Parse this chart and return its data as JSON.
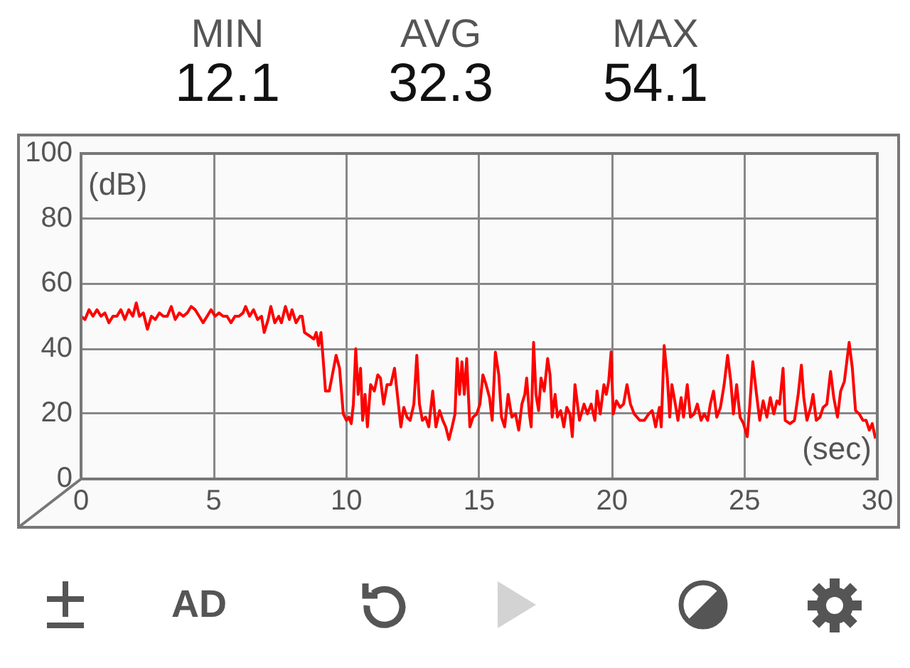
{
  "chart_data": {
    "type": "line",
    "xlabel": "(sec)",
    "ylabel": "(dB)",
    "annotations": [
      "MIN",
      "12.1",
      "AVG",
      "32.3",
      "MAX",
      "54.1",
      "AD"
    ],
    "x": [
      0,
      0.15,
      0.3,
      0.45,
      0.6,
      0.75,
      0.9,
      1.05,
      1.2,
      1.35,
      1.5,
      1.65,
      1.8,
      1.95,
      2.08,
      2.2,
      2.35,
      2.5,
      2.65,
      2.8,
      2.95,
      3.1,
      3.25,
      3.4,
      3.55,
      3.7,
      3.85,
      4,
      4.15,
      4.3,
      4.45,
      4.6,
      4.75,
      4.9,
      5.05,
      5.2,
      5.35,
      5.5,
      5.65,
      5.8,
      5.95,
      6.1,
      6.2,
      6.35,
      6.5,
      6.65,
      6.8,
      6.9,
      7.05,
      7.15,
      7.3,
      7.45,
      7.55,
      7.7,
      7.85,
      7.95,
      8.1,
      8.25,
      8.33,
      8.42,
      8.6,
      8.77,
      8.86,
      8.95,
      9.04,
      9.12,
      9.21,
      9.35,
      9.47,
      9.61,
      9.74,
      9.88,
      10,
      10.09,
      10.18,
      10.26,
      10.35,
      10.44,
      10.53,
      10.61,
      10.7,
      10.79,
      10.91,
      11.05,
      11.18,
      11.28,
      11.4,
      11.53,
      11.67,
      11.81,
      11.93,
      12.05,
      12.16,
      12.28,
      12.4,
      12.54,
      12.65,
      12.75,
      12.86,
      12.98,
      13.1,
      13.25,
      13.37,
      13.51,
      13.63,
      13.74,
      13.86,
      13.98,
      14.09,
      14.17,
      14.26,
      14.35,
      14.44,
      14.53,
      14.65,
      14.77,
      14.91,
      15.03,
      15.14,
      15.26,
      15.39,
      15.49,
      15.61,
      15.74,
      15.84,
      15.96,
      16.09,
      16.23,
      16.37,
      16.49,
      16.61,
      16.72,
      16.79,
      16.89,
      16.96,
      17.05,
      17.14,
      17.24,
      17.33,
      17.45,
      17.58,
      17.67,
      17.75,
      17.86,
      17.95,
      18.07,
      18.19,
      18.3,
      18.42,
      18.51,
      18.61,
      18.78,
      18.95,
      19.08,
      19.22,
      19.36,
      19.44,
      19.56,
      19.7,
      19.79,
      19.88,
      19.97,
      20.05,
      20.17,
      20.31,
      20.44,
      20.57,
      20.7,
      20.84,
      21.05,
      21.22,
      21.39,
      21.52,
      21.65,
      21.79,
      21.86,
      21.97,
      22.09,
      22.18,
      22.26,
      22.39,
      22.49,
      22.61,
      22.7,
      22.84,
      22.96,
      23.1,
      23.22,
      23.36,
      23.48,
      23.61,
      23.71,
      23.83,
      23.95,
      24.09,
      24.23,
      24.36,
      24.48,
      24.58,
      24.7,
      24.83,
      24.96,
      25.1,
      25.19,
      25.31,
      25.45,
      25.57,
      25.7,
      25.84,
      25.97,
      26.1,
      26.22,
      26.32,
      26.45,
      26.53,
      26.71,
      26.88,
      27.02,
      27.14,
      27.23,
      27.35,
      27.49,
      27.58,
      27.7,
      27.84,
      27.96,
      28.1,
      28.24,
      28.36,
      28.5,
      28.62,
      28.76,
      28.94,
      29.06,
      29.18,
      29.32,
      29.46,
      29.58,
      29.7,
      29.81,
      29.93
    ],
    "values": [
      50,
      49,
      52,
      50,
      52,
      50,
      51,
      48,
      50,
      50,
      52,
      49,
      52,
      50,
      54.1,
      50,
      51,
      46,
      50,
      49,
      51,
      50,
      50,
      53,
      49,
      51,
      50,
      51,
      53,
      52,
      50,
      48,
      50,
      52,
      50,
      51,
      50,
      50,
      48,
      50,
      50,
      51,
      53,
      50,
      52,
      49,
      50,
      45,
      49,
      53,
      48,
      50,
      48,
      53,
      49,
      52,
      48,
      50,
      50,
      45,
      44,
      43,
      45,
      41,
      45,
      37,
      27,
      27,
      32,
      38,
      34,
      20,
      18,
      19,
      17,
      23,
      40,
      26,
      34,
      18,
      26,
      16,
      29,
      27,
      32,
      31,
      23,
      29,
      29,
      34,
      25,
      16,
      22,
      19,
      18,
      23,
      38,
      23,
      18,
      19,
      16,
      27,
      16,
      21,
      18,
      16,
      12.1,
      16,
      20,
      37,
      26,
      36,
      26,
      37,
      16,
      19,
      20,
      23,
      32,
      29,
      25,
      18,
      39,
      32,
      19,
      16,
      26,
      19,
      20,
      15,
      23,
      26,
      31,
      20,
      16,
      42,
      26,
      21,
      31,
      27,
      37,
      32,
      19,
      26,
      19,
      21,
      16,
      22,
      20,
      13,
      29,
      18,
      23,
      20,
      23,
      18,
      27,
      20,
      29,
      26,
      30,
      39,
      20,
      24,
      22,
      23,
      29,
      23,
      20,
      18,
      18,
      20,
      21,
      16,
      22,
      16,
      41,
      31,
      19,
      29,
      23,
      18,
      25,
      19,
      29,
      19,
      20,
      23,
      18,
      20,
      18,
      23,
      27,
      19,
      22,
      29,
      38,
      30,
      20,
      29,
      19,
      17,
      13,
      22,
      36,
      26,
      18,
      24,
      19,
      25,
      20,
      24,
      23,
      34,
      18,
      17,
      18,
      26,
      35,
      25,
      18,
      22,
      26,
      18,
      19,
      22,
      23,
      33,
      25,
      19,
      27,
      30,
      42,
      34,
      21,
      20,
      18,
      18,
      15,
      17,
      12.4
    ],
    "color": "#ff0000",
    "xlim": [
      0,
      30
    ],
    "xticks": [
      0,
      5,
      10,
      15,
      20,
      25,
      30
    ],
    "ylim": [
      0,
      100
    ],
    "yticks": [
      0,
      20,
      40,
      60,
      80,
      100
    ],
    "grid": true,
    "marker": "none",
    "line_style": "solid"
  }
}
